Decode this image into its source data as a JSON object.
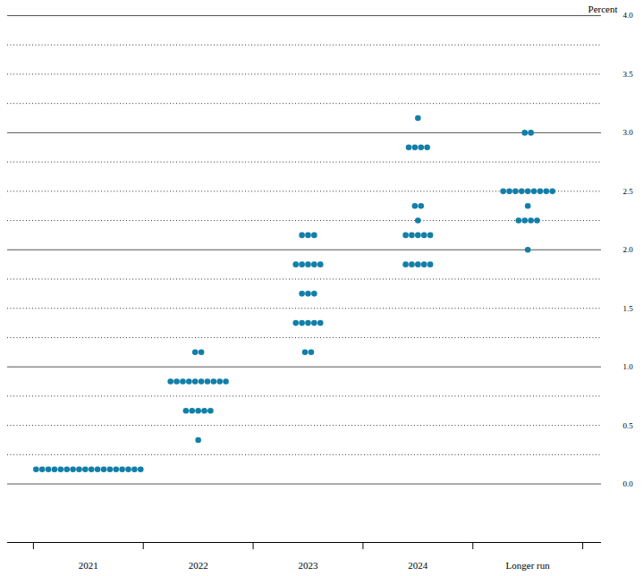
{
  "chart_data": {
    "type": "scatter",
    "categories": [
      "2021",
      "2022",
      "2023",
      "2024",
      "Longer run"
    ],
    "values": [
      [
        0.125,
        0.125,
        0.125,
        0.125,
        0.125,
        0.125,
        0.125,
        0.125,
        0.125,
        0.125,
        0.125,
        0.125,
        0.125,
        0.125,
        0.125,
        0.125,
        0.125,
        0.125
      ],
      [
        1.125,
        1.125,
        0.875,
        0.875,
        0.875,
        0.875,
        0.875,
        0.875,
        0.875,
        0.875,
        0.875,
        0.875,
        0.625,
        0.625,
        0.625,
        0.625,
        0.625,
        0.375
      ],
      [
        2.125,
        2.125,
        2.125,
        1.875,
        1.875,
        1.875,
        1.875,
        1.875,
        1.625,
        1.625,
        1.625,
        1.375,
        1.375,
        1.375,
        1.375,
        1.375,
        1.125,
        1.125
      ],
      [
        3.125,
        2.875,
        2.875,
        2.875,
        2.875,
        2.375,
        2.375,
        2.25,
        2.125,
        2.125,
        2.125,
        2.125,
        2.125,
        1.875,
        1.875,
        1.875,
        1.875,
        1.875
      ],
      [
        3.0,
        3.0,
        2.5,
        2.5,
        2.5,
        2.5,
        2.5,
        2.5,
        2.5,
        2.5,
        2.5,
        2.375,
        2.25,
        2.25,
        2.25,
        2.25,
        2.0
      ]
    ],
    "color": "#127fa8",
    "ylabel": "Percent",
    "ylim": [
      -0.5,
      4.0
    ],
    "yticks": [
      {
        "value": 0,
        "label": "0.0"
      },
      {
        "value": 0.5,
        "label": "0.5"
      },
      {
        "value": 1,
        "label": "1.0"
      },
      {
        "value": 1.5,
        "label": "1.5"
      },
      {
        "value": 2,
        "label": "2.0"
      },
      {
        "value": 2.5,
        "label": "2.5"
      },
      {
        "value": 3,
        "label": "3.0"
      },
      {
        "value": 3.5,
        "label": "3.5"
      },
      {
        "value": 4,
        "label": "4.0"
      }
    ],
    "grid": true
  }
}
